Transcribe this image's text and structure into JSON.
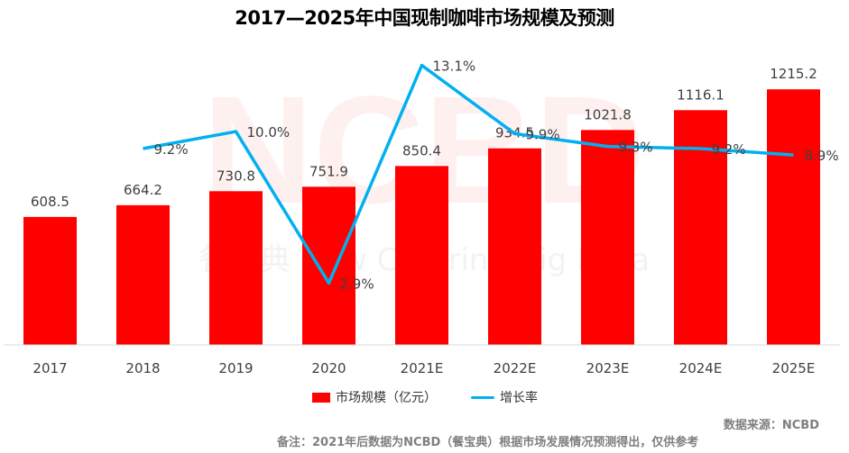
{
  "chart_data": {
    "type": "bar+line",
    "title": "2017—2025年中国现制咖啡市场规模及预测",
    "categories": [
      "2017",
      "2018",
      "2019",
      "2020",
      "2021E",
      "2022E",
      "2023E",
      "2024E",
      "2025E"
    ],
    "series": [
      {
        "name": "市场规模（亿元）",
        "type": "bar",
        "color": "#ff0000",
        "values": [
          608.5,
          664.2,
          730.8,
          751.9,
          850.4,
          934.5,
          1021.8,
          1116.1,
          1215.2
        ],
        "labels": [
          "608.5",
          "664.2",
          "730.8",
          "751.9",
          "850.4",
          "934.5",
          "1021.8",
          "1116.1",
          "1215.2"
        ]
      },
      {
        "name": "增长率",
        "type": "line",
        "color": "#00b0f0",
        "values": [
          null,
          9.2,
          10.0,
          2.9,
          13.1,
          9.9,
          9.3,
          9.2,
          8.9
        ],
        "labels": [
          "",
          "9.2%",
          "10.0%",
          "2.9%",
          "13.1%",
          "9.9%",
          "9.3%",
          "9.2%",
          "8.9%"
        ]
      }
    ],
    "ylim": [
      0,
      1400
    ],
    "y2lim": [
      0,
      13.8
    ],
    "grid": false,
    "legend": "bottom"
  },
  "watermark": {
    "logo": "NCBD",
    "text": "餐宝典 New Catering Big Data"
  },
  "footer": {
    "source": "数据来源：NCBD",
    "note": "备注：2021年后数据为NCBD（餐宝典）根据市场发展情况预测得出，仅供参考"
  }
}
